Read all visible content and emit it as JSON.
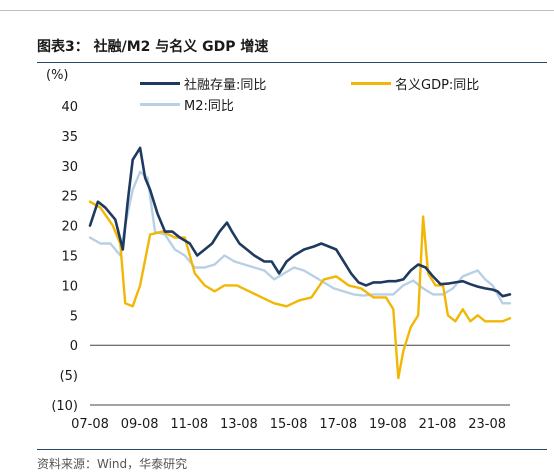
{
  "figure": {
    "title": "图表3：  社融/M2 与名义 GDP 增速",
    "source": "资料来源：Wind，华泰研究"
  },
  "chart_data": {
    "type": "line",
    "ylabel": "(%)",
    "ylim": [
      -10,
      40
    ],
    "yticks": [
      "40",
      "35",
      "30",
      "25",
      "20",
      "15",
      "10",
      "5",
      "0",
      "(5)",
      "(10)"
    ],
    "ytick_values": [
      40,
      35,
      30,
      25,
      20,
      15,
      10,
      5,
      0,
      -5,
      -10
    ],
    "xticks": [
      "07-08",
      "09-08",
      "11-08",
      "13-08",
      "15-08",
      "17-08",
      "19-08",
      "21-08",
      "23-08"
    ],
    "xtick_values": [
      2007.58,
      2009.58,
      2011.58,
      2013.58,
      2015.58,
      2017.58,
      2019.58,
      2021.58,
      2023.58
    ],
    "xlim": [
      2007.58,
      2024.5
    ],
    "legend_placement": "top",
    "series": [
      {
        "name": "社融存量:同比",
        "color": "#1f3a5f",
        "x": [
          2007.58,
          2007.9,
          2008.2,
          2008.6,
          2008.9,
          2009.1,
          2009.3,
          2009.6,
          2009.8,
          2010.0,
          2010.3,
          2010.6,
          2010.9,
          2011.2,
          2011.6,
          2011.9,
          2012.2,
          2012.5,
          2012.8,
          2013.1,
          2013.3,
          2013.6,
          2013.9,
          2014.2,
          2014.6,
          2014.9,
          2015.2,
          2015.5,
          2015.8,
          2016.2,
          2016.6,
          2016.9,
          2017.2,
          2017.5,
          2017.8,
          2018.1,
          2018.4,
          2018.7,
          2019.0,
          2019.3,
          2019.6,
          2019.9,
          2020.2,
          2020.5,
          2020.8,
          2021.1,
          2021.4,
          2021.7,
          2022.0,
          2022.3,
          2022.6,
          2022.9,
          2023.2,
          2023.5,
          2023.8,
          2024.0,
          2024.2,
          2024.5
        ],
        "values": [
          20,
          24,
          23,
          21,
          16,
          24,
          31,
          33,
          28,
          26,
          22,
          19,
          19,
          18,
          17,
          15,
          16,
          17,
          19,
          20.5,
          19,
          17,
          16,
          15,
          14,
          14,
          12,
          14,
          15,
          16,
          16.5,
          17,
          16.5,
          16,
          14,
          12,
          10.5,
          10,
          10.5,
          10.5,
          10.7,
          10.7,
          11,
          12.5,
          13.5,
          13,
          11.5,
          10.2,
          10.3,
          10.5,
          10.7,
          10.2,
          9.8,
          9.5,
          9.3,
          9,
          8.2,
          8.5
        ]
      },
      {
        "name": "名义GDP:同比",
        "color": "#f2b705",
        "x": [
          2007.58,
          2008.0,
          2008.5,
          2008.8,
          2009.0,
          2009.3,
          2009.6,
          2010.0,
          2010.5,
          2011.0,
          2011.4,
          2011.8,
          2012.2,
          2012.6,
          2013.0,
          2013.5,
          2014.0,
          2014.5,
          2015.0,
          2015.5,
          2016.0,
          2016.5,
          2017.0,
          2017.5,
          2018.0,
          2018.5,
          2019.0,
          2019.5,
          2019.8,
          2020.0,
          2020.2,
          2020.5,
          2020.8,
          2021.0,
          2021.2,
          2021.5,
          2021.8,
          2022.0,
          2022.3,
          2022.6,
          2022.9,
          2023.2,
          2023.5,
          2023.8,
          2024.2,
          2024.5
        ],
        "values": [
          24,
          23,
          20,
          17,
          7,
          6.5,
          10,
          18.5,
          19,
          18,
          18,
          12,
          10,
          9,
          10,
          10,
          9,
          8,
          7,
          6.5,
          7.5,
          8,
          11,
          11.5,
          10,
          9.5,
          8,
          8,
          6,
          -5.5,
          -1,
          3,
          5,
          21.5,
          12,
          10,
          10,
          5,
          4,
          6,
          4,
          5,
          4,
          4,
          4,
          4.5
        ]
      },
      {
        "name": "M2:同比",
        "color": "#b8d0e6",
        "x": [
          2007.58,
          2008.0,
          2008.4,
          2008.8,
          2009.0,
          2009.3,
          2009.6,
          2009.9,
          2010.2,
          2010.6,
          2011.0,
          2011.4,
          2011.8,
          2012.2,
          2012.6,
          2013.0,
          2013.4,
          2013.8,
          2014.2,
          2014.6,
          2015.0,
          2015.4,
          2015.8,
          2016.2,
          2016.6,
          2017.0,
          2017.4,
          2017.8,
          2018.2,
          2018.6,
          2019.0,
          2019.4,
          2019.8,
          2020.2,
          2020.6,
          2021.0,
          2021.4,
          2021.8,
          2022.2,
          2022.6,
          2022.9,
          2023.2,
          2023.5,
          2023.8,
          2024.2,
          2024.5
        ],
        "values": [
          18,
          17,
          17,
          15,
          20,
          26,
          29,
          28,
          19,
          18.5,
          16,
          15,
          13,
          13,
          13.5,
          15,
          14,
          13.5,
          13,
          12.5,
          11,
          12,
          13,
          12.5,
          11.5,
          10.5,
          9.5,
          9,
          8.5,
          8.3,
          8.5,
          8.5,
          8.5,
          10,
          10.8,
          9.5,
          8.5,
          8.5,
          9.5,
          11.5,
          12,
          12.5,
          11,
          10,
          7,
          7
        ]
      }
    ]
  }
}
